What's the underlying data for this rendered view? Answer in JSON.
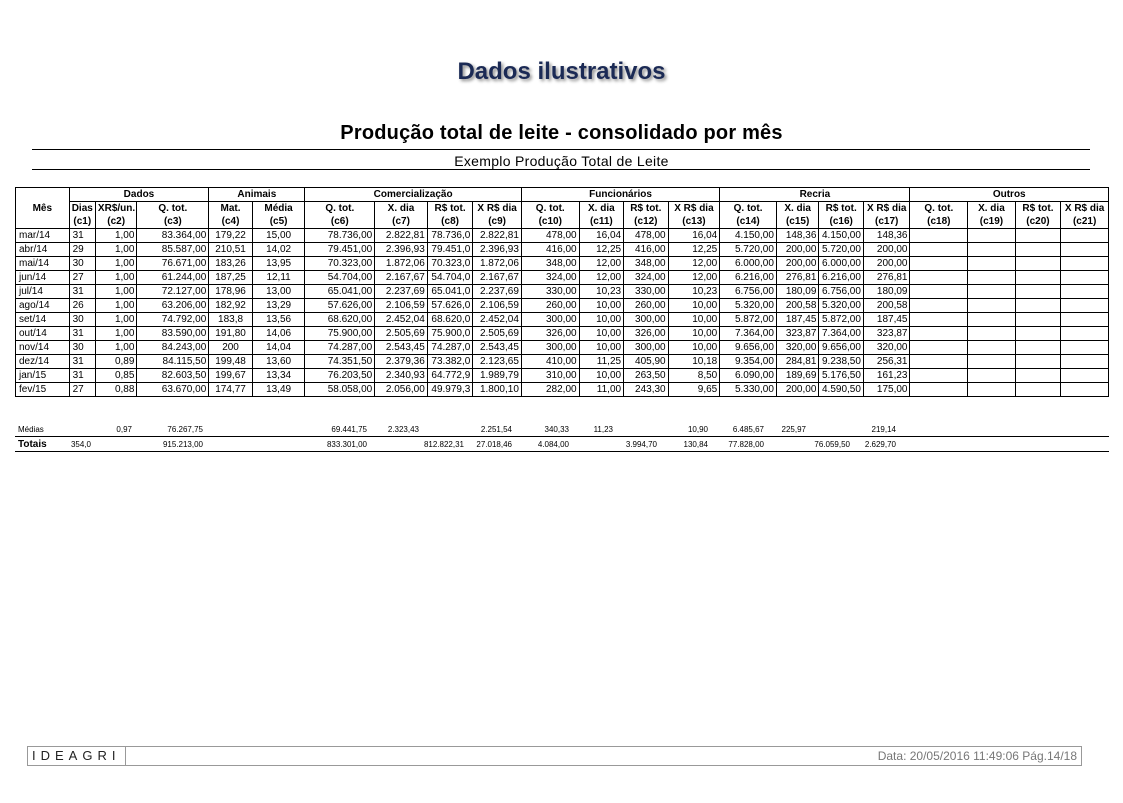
{
  "watermark": "Dados ilustrativos",
  "report_title": "Produção total de leite - consolidado por mês",
  "subtitle": "Exemplo Produção Total de Leite",
  "groups": {
    "mes": "Mês",
    "dados": "Dados",
    "animais": "Animais",
    "comercializacao": "Comercialização",
    "funcionarios": "Funcionários",
    "recria": "Recria",
    "outros": "Outros"
  },
  "columns": [
    [
      "Dias",
      "(c1)"
    ],
    [
      "XR$/un.",
      "(c2)"
    ],
    [
      "Q. tot.",
      "(c3)"
    ],
    [
      "Mat.",
      "(c4)"
    ],
    [
      "Média",
      "(c5)"
    ],
    [
      "Q. tot.",
      "(c6)"
    ],
    [
      "X. dia",
      "(c7)"
    ],
    [
      "R$ tot.",
      "(c8)"
    ],
    [
      "X R$ dia",
      "(c9)"
    ],
    [
      "Q. tot.",
      "(c10)"
    ],
    [
      "X. dia",
      "(c11)"
    ],
    [
      "R$ tot.",
      "(c12)"
    ],
    [
      "X R$ dia",
      "(c13)"
    ],
    [
      "Q. tot.",
      "(c14)"
    ],
    [
      "X. dia",
      "(c15)"
    ],
    [
      "R$ tot.",
      "(c16)"
    ],
    [
      "X R$ dia",
      "(c17)"
    ],
    [
      "Q. tot.",
      "(c18)"
    ],
    [
      "X. dia",
      "(c19)"
    ],
    [
      "R$ tot.",
      "(c20)"
    ],
    [
      "X R$ dia",
      "(c21)"
    ]
  ],
  "rows": [
    [
      "mar/14",
      "31",
      "1,00",
      "83.364,00",
      "179,22",
      "15,00",
      "78.736,00",
      "2.822,81",
      "78.736,0",
      "2.822,81",
      "478,00",
      "16,04",
      "478,00",
      "16,04",
      "4.150,00",
      "148,36",
      "4.150,00",
      "148,36",
      "",
      "",
      "",
      ""
    ],
    [
      "abr/14",
      "29",
      "1,00",
      "85.587,00",
      "210,51",
      "14,02",
      "79.451,00",
      "2.396,93",
      "79.451,0",
      "2.396,93",
      "416,00",
      "12,25",
      "416,00",
      "12,25",
      "5.720,00",
      "200,00",
      "5.720,00",
      "200,00",
      "",
      "",
      "",
      ""
    ],
    [
      "mai/14",
      "30",
      "1,00",
      "76.671,00",
      "183,26",
      "13,95",
      "70.323,00",
      "1.872,06",
      "70.323,0",
      "1.872,06",
      "348,00",
      "12,00",
      "348,00",
      "12,00",
      "6.000,00",
      "200,00",
      "6.000,00",
      "200,00",
      "",
      "",
      "",
      ""
    ],
    [
      "jun/14",
      "27",
      "1,00",
      "61.244,00",
      "187,25",
      "12,11",
      "54.704,00",
      "2.167,67",
      "54.704,0",
      "2.167,67",
      "324,00",
      "12,00",
      "324,00",
      "12,00",
      "6.216,00",
      "276,81",
      "6.216,00",
      "276,81",
      "",
      "",
      "",
      ""
    ],
    [
      "jul/14",
      "31",
      "1,00",
      "72.127,00",
      "178,96",
      "13,00",
      "65.041,00",
      "2.237,69",
      "65.041,0",
      "2.237,69",
      "330,00",
      "10,23",
      "330,00",
      "10,23",
      "6.756,00",
      "180,09",
      "6.756,00",
      "180,09",
      "",
      "",
      "",
      ""
    ],
    [
      "ago/14",
      "26",
      "1,00",
      "63.206,00",
      "182,92",
      "13,29",
      "57.626,00",
      "2.106,59",
      "57.626,0",
      "2.106,59",
      "260,00",
      "10,00",
      "260,00",
      "10,00",
      "5.320,00",
      "200,58",
      "5.320,00",
      "200,58",
      "",
      "",
      "",
      ""
    ],
    [
      "set/14",
      "30",
      "1,00",
      "74.792,00",
      "183,8",
      "13,56",
      "68.620,00",
      "2.452,04",
      "68.620,0",
      "2.452,04",
      "300,00",
      "10,00",
      "300,00",
      "10,00",
      "5.872,00",
      "187,45",
      "5.872,00",
      "187,45",
      "",
      "",
      "",
      ""
    ],
    [
      "out/14",
      "31",
      "1,00",
      "83.590,00",
      "191,80",
      "14,06",
      "75.900,00",
      "2.505,69",
      "75.900,0",
      "2.505,69",
      "326,00",
      "10,00",
      "326,00",
      "10,00",
      "7.364,00",
      "323,87",
      "7.364,00",
      "323,87",
      "",
      "",
      "",
      ""
    ],
    [
      "nov/14",
      "30",
      "1,00",
      "84.243,00",
      "200",
      "14,04",
      "74.287,00",
      "2.543,45",
      "74.287,0",
      "2.543,45",
      "300,00",
      "10,00",
      "300,00",
      "10,00",
      "9.656,00",
      "320,00",
      "9.656,00",
      "320,00",
      "",
      "",
      "",
      ""
    ],
    [
      "dez/14",
      "31",
      "0,89",
      "84.115,50",
      "199,48",
      "13,60",
      "74.351,50",
      "2.379,36",
      "73.382,0",
      "2.123,65",
      "410,00",
      "11,25",
      "405,90",
      "10,18",
      "9.354,00",
      "284,81",
      "9.238,50",
      "256,31",
      "",
      "",
      "",
      ""
    ],
    [
      "jan/15",
      "31",
      "0,85",
      "82.603,50",
      "199,67",
      "13,34",
      "76.203,50",
      "2.340,93",
      "64.772,9",
      "1.989,79",
      "310,00",
      "10,00",
      "263,50",
      "8,50",
      "6.090,00",
      "189,69",
      "5.176,50",
      "161,23",
      "",
      "",
      "",
      ""
    ],
    [
      "fev/15",
      "27",
      "0,88",
      "63.670,00",
      "174,77",
      "13,49",
      "58.058,00",
      "2.056,00",
      "49.979,3",
      "1.800,10",
      "282,00",
      "11,00",
      "243,30",
      "9,65",
      "5.330,00",
      "200,00",
      "4.590,50",
      "175,00",
      "",
      "",
      "",
      ""
    ]
  ],
  "medias": {
    "label": "Médias",
    "c2": "0,97",
    "c3": "76.267,75",
    "c6": "69.441,75",
    "c7": "2.323,43",
    "c9": "2.251,54",
    "c10": "340,33",
    "c11": "11,23",
    "c13": "10,90",
    "c14": "6.485,67",
    "c15": "225,97",
    "c17": "219,14"
  },
  "totais": {
    "label": "Totais",
    "c1": "354,0",
    "c3": "915.213,00",
    "c6": "833.301,00",
    "c8": "812.822,31",
    "c9": "27.018,46",
    "c10": "4.084,00",
    "c12": "3.994,70",
    "c13": "130,84",
    "c14": "77.828,00",
    "c16": "76.059,50",
    "c17": "2.629,70"
  },
  "footer": {
    "logo": "IDEAGRI",
    "stamp": "Data: 20/05/2016 11:49:06 Pág.14/18"
  }
}
